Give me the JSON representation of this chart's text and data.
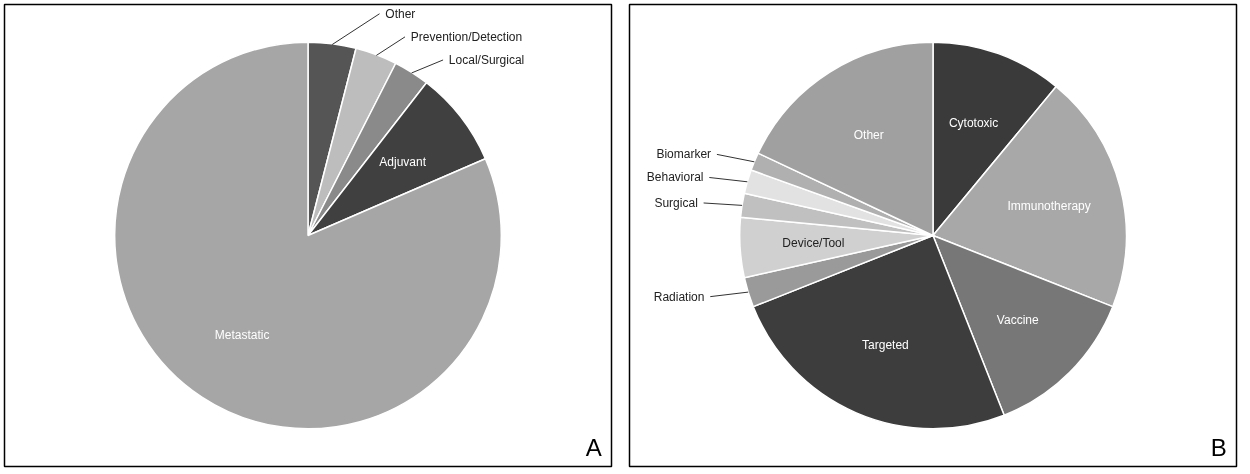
{
  "chart_data": [
    {
      "type": "pie",
      "categories": [
        "Other",
        "Prevention/Detection",
        "Local/Surgical",
        "Adjuvant",
        "Metastatic"
      ],
      "values": [
        4,
        3.5,
        3,
        8,
        81.5
      ],
      "colors": [
        "#555555",
        "#bdbdbd",
        "#8a8a8a",
        "#404040",
        "#a6a6a6"
      ],
      "annotations": [
        "A"
      ]
    },
    {
      "type": "pie",
      "categories": [
        "Cytotoxic",
        "Immunotherapy",
        "Vaccine",
        "Targeted",
        "Radiation",
        "Device/Tool",
        "Surgical",
        "Behavioral",
        "Biomarker",
        "Other"
      ],
      "values": [
        11,
        20,
        13,
        25,
        2.5,
        5,
        2,
        2,
        1.5,
        18
      ],
      "colors": [
        "#3a3a3a",
        "#a8a8a8",
        "#777777",
        "#3d3d3d",
        "#9a9a9a",
        "#d0d0d0",
        "#c0c0c0",
        "#e2e2e2",
        "#b0b0b0",
        "#a0a0a0"
      ],
      "annotations": [
        "B"
      ]
    }
  ]
}
